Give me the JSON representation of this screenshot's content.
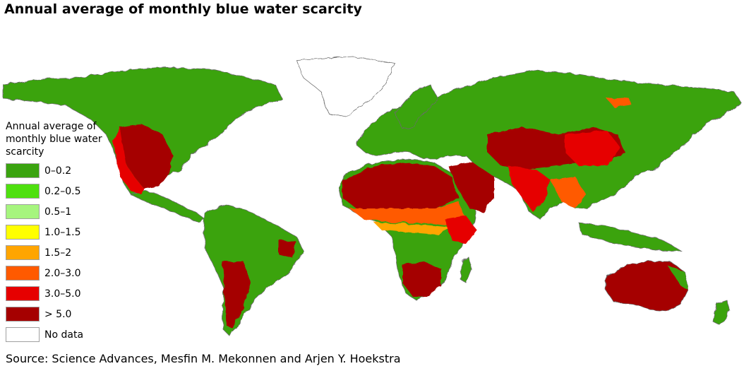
{
  "title": "Annual average of monthly blue water scarcity",
  "legend": {
    "title": "Annual average of monthly blue water scarcity",
    "items": [
      {
        "label": "0–0.2",
        "color": "#3aa30f"
      },
      {
        "label": "0.2–0.5",
        "color": "#4fe00f"
      },
      {
        "label": "0.5–1",
        "color": "#a6f57e"
      },
      {
        "label": "1.0–1.5",
        "color": "#ffff00"
      },
      {
        "label": "1.5–2",
        "color": "#ffa500"
      },
      {
        "label": "2.0–3.0",
        "color": "#ff5a00"
      },
      {
        "label": "3.0–5.0",
        "color": "#e60000"
      },
      {
        "label": "> 5.0",
        "color": "#a50000"
      },
      {
        "label": "No data",
        "color": "#ffffff"
      }
    ]
  },
  "source": "Source: Science Advances, Mesfin M. Mekonnen and Arjen Y. Hoekstra"
}
